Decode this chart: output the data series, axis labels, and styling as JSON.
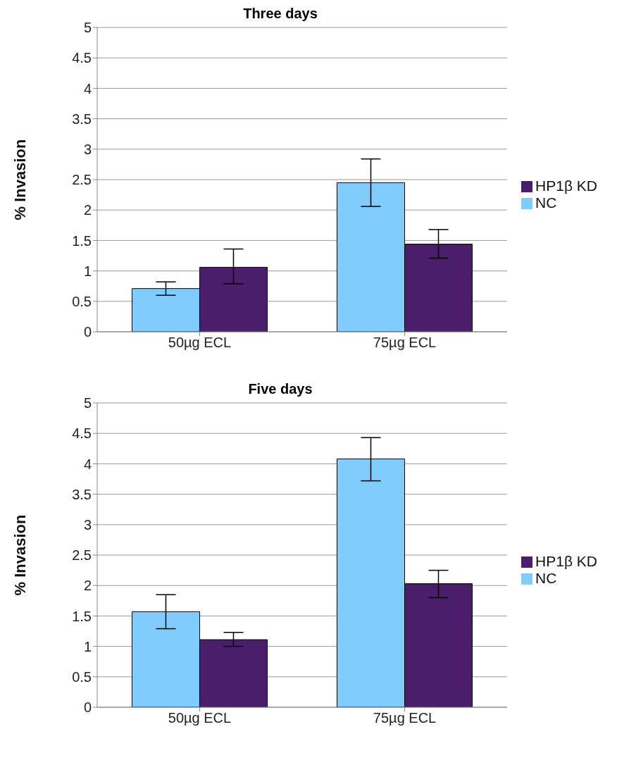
{
  "chart_data": [
    {
      "type": "bar",
      "title": "Three days",
      "ylabel": "% Invasion",
      "categories": [
        "50µg ECL",
        "75µg ECL"
      ],
      "series": [
        {
          "name": "NC",
          "color": "#80ccff",
          "values": [
            0.71,
            2.45
          ],
          "errors": [
            [
              0.6,
              0.82
            ],
            [
              2.06,
              2.84
            ]
          ]
        },
        {
          "name": "HP1β KD",
          "color": "#4b1e6b",
          "values": [
            1.06,
            1.44
          ],
          "errors": [
            [
              0.79,
              1.36
            ],
            [
              1.21,
              1.68
            ]
          ]
        }
      ],
      "ylim": [
        0,
        5
      ],
      "yticks": [
        0,
        0.5,
        1,
        1.5,
        2,
        2.5,
        3,
        3.5,
        4,
        4.5,
        5
      ],
      "grid": "y",
      "legend": "right"
    },
    {
      "type": "bar",
      "title": "Five days",
      "ylabel": "% Invasion",
      "categories": [
        "50µg ECL",
        "75µg ECL"
      ],
      "series": [
        {
          "name": "NC",
          "color": "#80ccff",
          "values": [
            1.57,
            4.08
          ],
          "errors": [
            [
              1.29,
              1.85
            ],
            [
              3.72,
              4.43
            ]
          ]
        },
        {
          "name": "HP1β KD",
          "color": "#4b1e6b",
          "values": [
            1.11,
            2.03
          ],
          "errors": [
            [
              1.0,
              1.23
            ],
            [
              1.8,
              2.25
            ]
          ]
        }
      ],
      "ylim": [
        0,
        5
      ],
      "yticks": [
        0,
        0.5,
        1,
        1.5,
        2,
        2.5,
        3,
        3.5,
        4,
        4.5,
        5
      ],
      "grid": "y",
      "legend": "right"
    }
  ]
}
